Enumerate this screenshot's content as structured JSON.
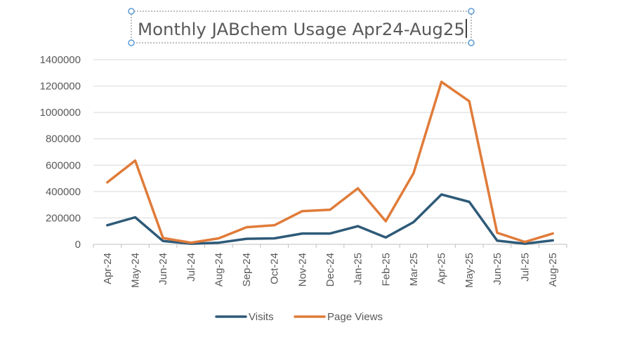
{
  "chart_data": {
    "type": "line",
    "title": "Monthly JABchem Usage Apr24-Aug25",
    "xlabel": "",
    "ylabel": "",
    "categories": [
      "Apr-24",
      "May-24",
      "Jun-24",
      "Jul-24",
      "Aug-24",
      "Sep-24",
      "Oct-24",
      "Nov-24",
      "Dec-24",
      "Jan-25",
      "Feb-25",
      "Mar-25",
      "Apr-25",
      "May-25",
      "Jun-25",
      "Jul-25",
      "Aug-25"
    ],
    "series": [
      {
        "name": "Visits",
        "color": "#2e5a78",
        "values": [
          145000,
          205000,
          25000,
          5000,
          12000,
          42000,
          45000,
          82000,
          82000,
          138000,
          52000,
          168000,
          378000,
          322000,
          28000,
          5000,
          30000
        ]
      },
      {
        "name": "Page Views",
        "color": "#e07b39",
        "values": [
          470000,
          635000,
          48000,
          12000,
          45000,
          130000,
          145000,
          252000,
          262000,
          425000,
          175000,
          540000,
          1232000,
          1085000,
          88000,
          18000,
          82000
        ]
      }
    ],
    "ylim": [
      0,
      1400000
    ],
    "yticks": [
      "0",
      "200000",
      "400000",
      "600000",
      "800000",
      "1000000",
      "1200000",
      "1400000"
    ],
    "grid": true,
    "legend": "bottom",
    "title_selected": true
  }
}
